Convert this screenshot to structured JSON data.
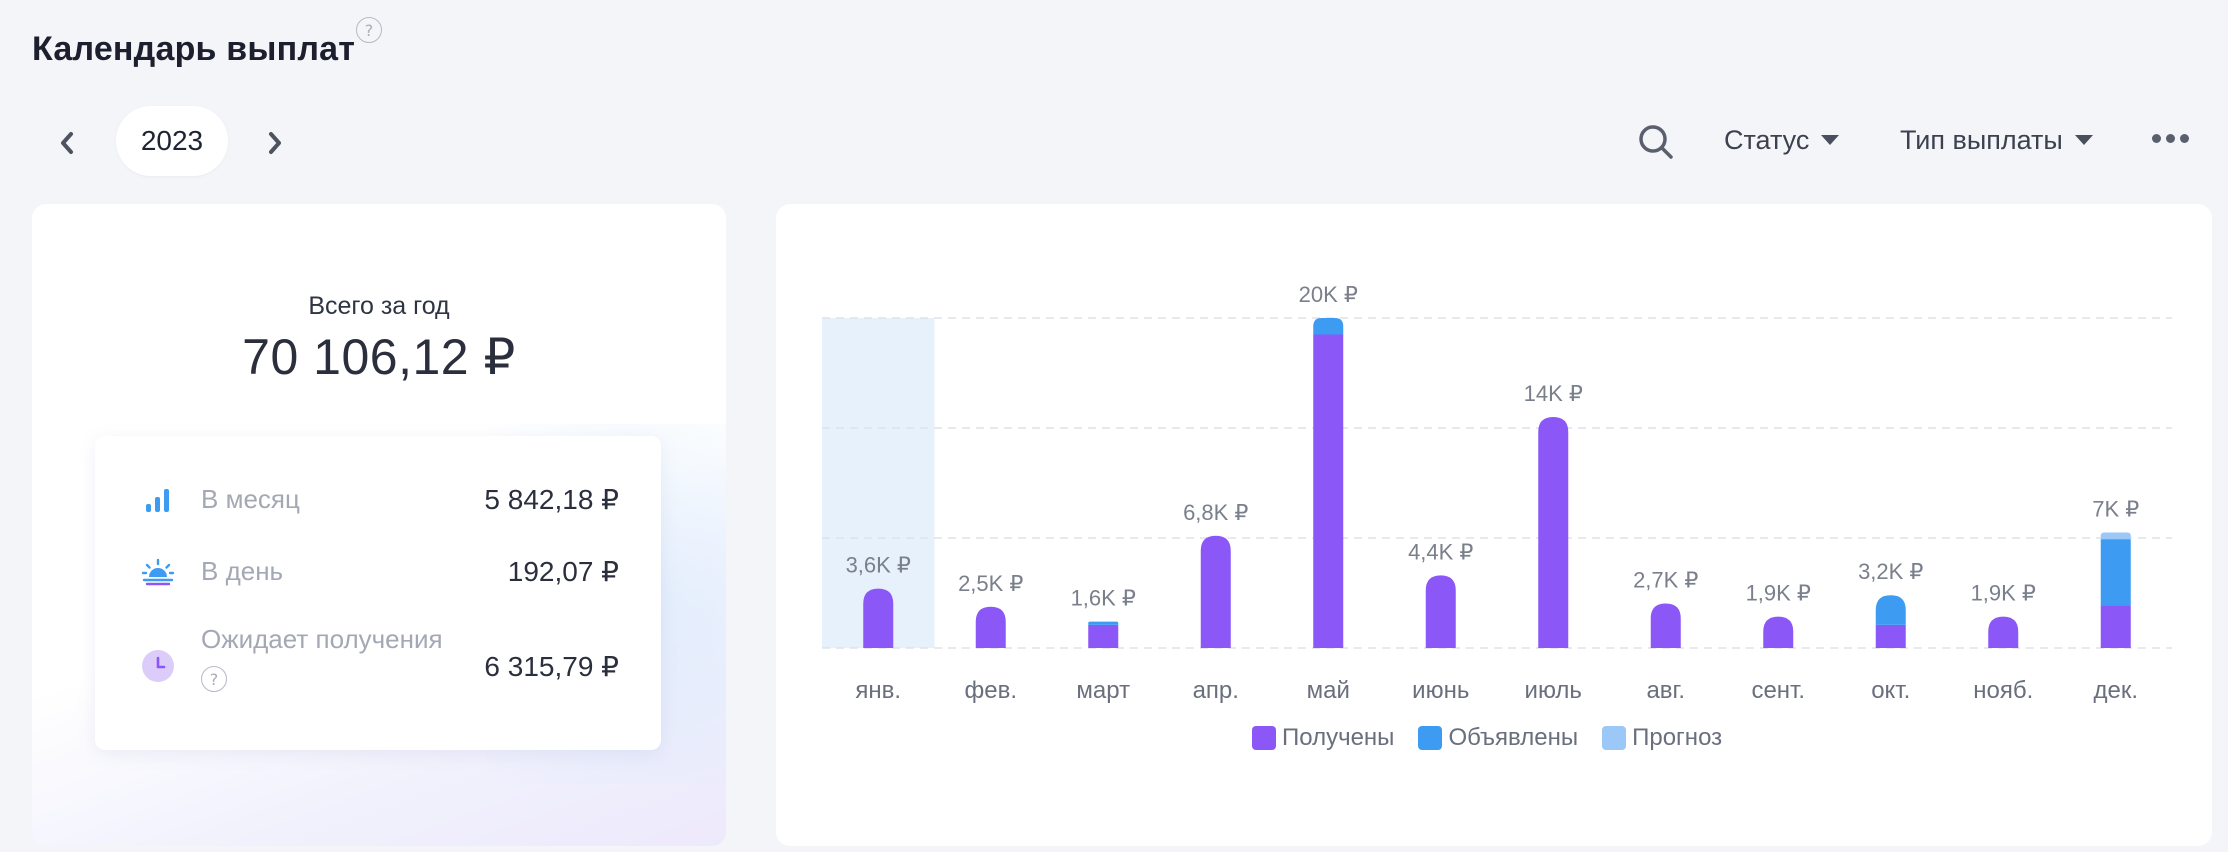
{
  "header": {
    "title": "Календарь выплат",
    "help": "?"
  },
  "nav": {
    "year": "2023"
  },
  "toolbar": {
    "status_label": "Статус",
    "payout_type_label": "Тип выплаты"
  },
  "summary": {
    "year_label": "Всего за год",
    "year_total": "70 106,12 ₽",
    "stats": [
      {
        "label": "В месяц",
        "value": "5 842,18 ₽",
        "icon": "bar-chart-icon"
      },
      {
        "label": "В день",
        "value": "192,07 ₽",
        "icon": "sunrise-icon"
      },
      {
        "label": "Ожидает получения",
        "value": "6 315,79 ₽",
        "icon": "clock-icon",
        "help": "?"
      }
    ]
  },
  "colors": {
    "received": "#8b57f6",
    "announced": "#3d9cf2",
    "forecast": "#9cc8f8",
    "highlight": "#e7f1fc"
  },
  "chart_data": {
    "type": "bar",
    "stacked": true,
    "categories": [
      "янв.",
      "фев.",
      "март",
      "апр.",
      "май",
      "июнь",
      "июль",
      "авг.",
      "сент.",
      "окт.",
      "нояб.",
      "дек."
    ],
    "labels": [
      "3,6K ₽",
      "2,5K ₽",
      "1,6K ₽",
      "6,8K ₽",
      "20K ₽",
      "4,4K ₽",
      "14K ₽",
      "2,7K ₽",
      "1,9K ₽",
      "3,2K ₽",
      "1,9K ₽",
      "7K ₽"
    ],
    "series": [
      {
        "name": "Получены",
        "values": [
          3600,
          2500,
          1400,
          6800,
          19000,
          4400,
          14000,
          2700,
          1900,
          1400,
          1900,
          2600
        ]
      },
      {
        "name": "Объявлены",
        "values": [
          0,
          0,
          200,
          0,
          1000,
          0,
          0,
          0,
          0,
          1800,
          0,
          4000
        ]
      },
      {
        "name": "Прогноз",
        "values": [
          0,
          0,
          0,
          0,
          0,
          0,
          0,
          0,
          0,
          0,
          0,
          400
        ]
      }
    ],
    "ylim": [
      0,
      20000
    ],
    "highlighted_category": "янв.",
    "grid": true,
    "legend": "bottom"
  }
}
